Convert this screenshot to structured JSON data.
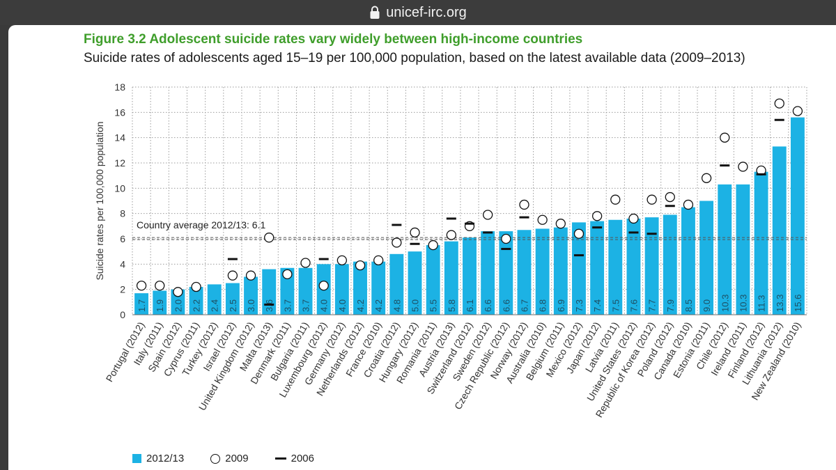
{
  "browser": {
    "url": "unicef-irc.org",
    "lock_icon": "lock-icon"
  },
  "figure": {
    "title": "Figure 3.2  Adolescent suicide rates vary widely between high-income countries",
    "subtitle": "Suicide rates of adolescents aged 15–19 per 100,000 population, based on the latest available data (2009–2013)"
  },
  "colors": {
    "bar": "#1cb2e4",
    "title_green": "#3f9e2b",
    "marker": "#111111",
    "grid": "#9a9a9a"
  },
  "chart_data": {
    "type": "bar",
    "title": "",
    "ylabel": "Suicide rates per 100,000 population",
    "xlabel": "",
    "ylim": [
      0,
      18
    ],
    "yticks": [
      0,
      2,
      4,
      6,
      8,
      10,
      12,
      14,
      16,
      18
    ],
    "grid": true,
    "reference_line": {
      "label": "Country average 2012/13: 6.1",
      "value": 6.1
    },
    "categories": [
      "Portugal (2012)",
      "Italy (2011)",
      "Spain (2012)",
      "Cyprus (2011)",
      "Turkey (2012)",
      "Israel (2012)",
      "United Kingdom (2012)",
      "Malta (2013)",
      "Denmark (2011)",
      "Bulgaria (2011)",
      "Luxembourg (2012)",
      "Germany (2012)",
      "Netherlands (2012)",
      "France (2010)",
      "Croatia (2012)",
      "Hungary (2012)",
      "Romania (2011)",
      "Austria (2013)",
      "Switzerland (2012)",
      "Sweden (2012)",
      "Czech Republic (2012)",
      "Norway (2012)",
      "Australia (2010)",
      "Belgium (2011)",
      "Mexico (2012)",
      "Japan (2012)",
      "Latvia (2011)",
      "United States (2012)",
      "Republic of Korea (2012)",
      "Poland (2012)",
      "Canada (2010)",
      "Estonia (2011)",
      "Chile (2012)",
      "Ireland (2011)",
      "Finland (2012)",
      "Lithuania (2012)",
      "New Zealand (2010)"
    ],
    "series": [
      {
        "name": "2012/13",
        "kind": "bar",
        "values": [
          1.7,
          1.9,
          2.0,
          2.2,
          2.4,
          2.5,
          3.0,
          3.6,
          3.7,
          3.7,
          4.0,
          4.0,
          4.2,
          4.2,
          4.8,
          5.0,
          5.5,
          5.8,
          6.1,
          6.6,
          6.6,
          6.7,
          6.8,
          6.9,
          7.3,
          7.4,
          7.5,
          7.6,
          7.7,
          7.9,
          8.5,
          9.0,
          10.3,
          10.3,
          11.3,
          13.3,
          15.6
        ],
        "labels": [
          "1.7",
          "1.9",
          "2.0",
          "2.2",
          "2.4",
          "2.5",
          "3.0",
          "3.6",
          "3.7",
          "3.7",
          "4.0",
          "4.0",
          "4.2",
          "4.2",
          "4.8",
          "5.0",
          "5.5",
          "5.8",
          "6.1",
          "6.6",
          "6.6",
          "6.7",
          "6.8",
          "6.9",
          "7.3",
          "7.4",
          "7.5",
          "7.6",
          "7.7",
          "7.9",
          "8.5",
          "9.0",
          "10.3",
          "10.3",
          "11.3",
          "13.3",
          "15.6"
        ]
      },
      {
        "name": "2009",
        "kind": "circle",
        "values": [
          2.3,
          2.3,
          1.8,
          2.2,
          null,
          3.1,
          3.1,
          6.1,
          3.2,
          4.1,
          2.3,
          4.3,
          3.9,
          4.3,
          5.7,
          6.5,
          5.5,
          6.3,
          7.0,
          7.9,
          6.0,
          8.7,
          7.5,
          7.2,
          6.4,
          7.8,
          9.1,
          7.6,
          9.1,
          9.3,
          8.7,
          10.8,
          14.0,
          11.7,
          11.4,
          16.7,
          16.1
        ]
      },
      {
        "name": "2006",
        "kind": "dash",
        "values": [
          null,
          null,
          null,
          null,
          null,
          4.4,
          null,
          0.8,
          null,
          null,
          4.4,
          null,
          null,
          null,
          7.1,
          5.6,
          null,
          7.6,
          7.2,
          6.5,
          5.2,
          7.7,
          null,
          null,
          4.7,
          6.9,
          null,
          6.5,
          6.4,
          8.6,
          null,
          null,
          11.8,
          null,
          11.1,
          15.4,
          null
        ]
      }
    ],
    "legend": {
      "placement": "bottom-left",
      "entries": [
        "2012/13",
        "2009",
        "2006"
      ]
    }
  }
}
